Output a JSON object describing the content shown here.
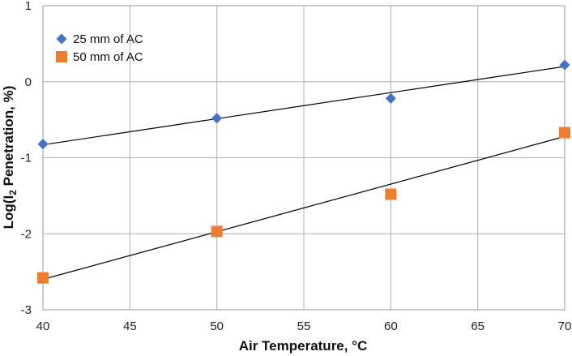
{
  "chart_data": {
    "type": "scatter",
    "xlabel": "Air Temperature, °C",
    "ylabel_parts": {
      "pre": "Log(I",
      "sub": "2",
      "post": " Penetration, %)"
    },
    "xlim": [
      40,
      70
    ],
    "ylim": [
      -3,
      1
    ],
    "xticks": [
      40,
      45,
      50,
      55,
      60,
      65,
      70
    ],
    "yticks": [
      -3,
      -2,
      -1,
      0,
      1
    ],
    "grid": true,
    "legend_position": "top-left",
    "series": [
      {
        "name": "25 mm of AC",
        "marker": "diamond",
        "color": "#4472C4",
        "x": [
          40,
          50,
          60,
          70
        ],
        "y": [
          -0.82,
          -0.48,
          -0.22,
          0.22
        ],
        "trendline": {
          "x": [
            40,
            70
          ],
          "y": [
            -0.83,
            0.2
          ]
        }
      },
      {
        "name": "50 mm of AC",
        "marker": "square",
        "color": "#ED7D31",
        "x": [
          40,
          50,
          60,
          70
        ],
        "y": [
          -2.58,
          -1.97,
          -1.48,
          -0.67
        ],
        "trendline": {
          "x": [
            40,
            70
          ],
          "y": [
            -2.6,
            -0.72
          ]
        }
      }
    ]
  }
}
